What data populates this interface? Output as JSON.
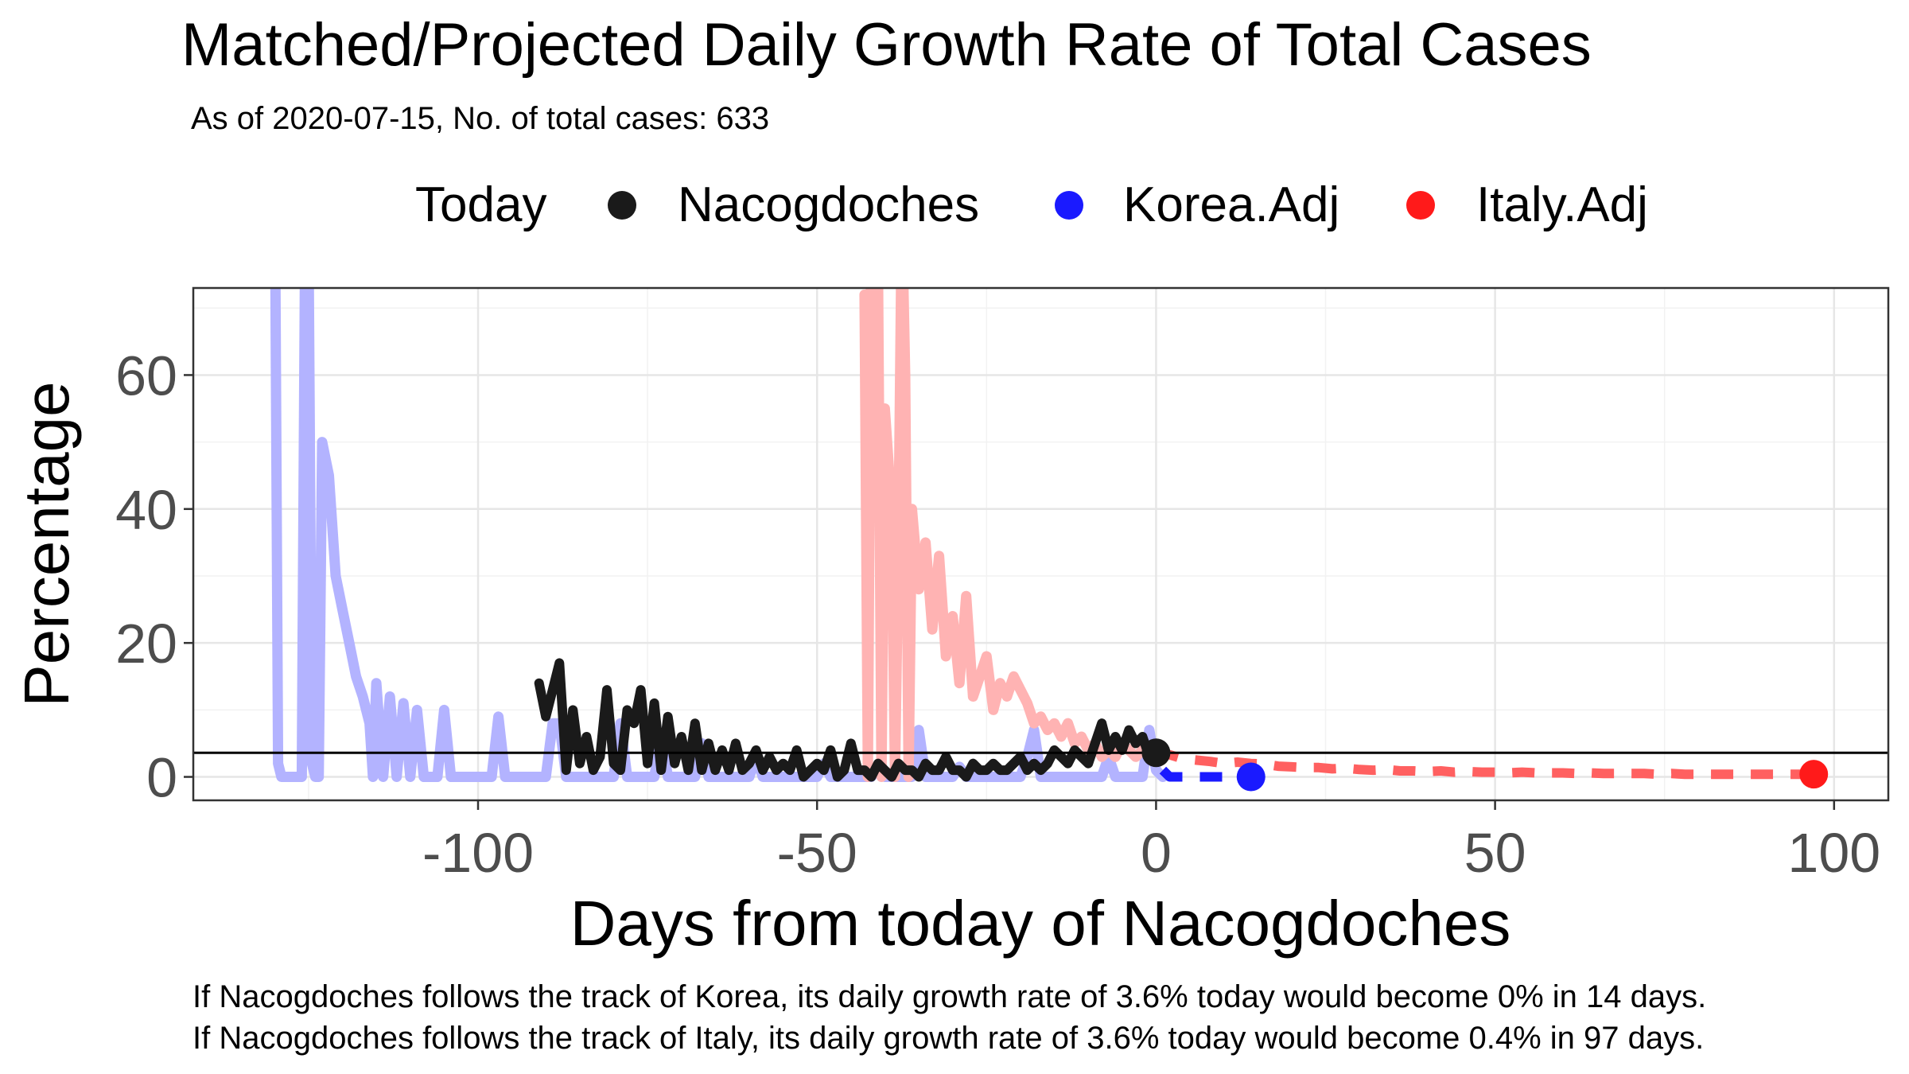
{
  "chart_data": {
    "type": "line",
    "title": "Matched/Projected Daily Growth Rate of Total Cases",
    "subtitle": "As of 2020-07-15, No. of total cases: 633",
    "xlabel": "Days from today of Nacogdoches",
    "ylabel": "Percentage",
    "xlim": [
      -142,
      108
    ],
    "ylim": [
      -3.5,
      73
    ],
    "x_ticks": [
      -100,
      -50,
      0,
      50,
      100
    ],
    "x_tick_labels": [
      "-100",
      "-50",
      "0",
      "50",
      "100"
    ],
    "y_ticks": [
      0,
      20,
      40,
      60
    ],
    "y_tick_labels": [
      "0",
      "20",
      "40",
      "60"
    ],
    "grid": true,
    "legend": {
      "title": "Today",
      "position": "top",
      "entries": [
        {
          "label": "Nacogdoches",
          "color": "#1a1a1a"
        },
        {
          "label": "Korea.Adj",
          "color": "#1a1aff"
        },
        {
          "label": "Italy.Adj",
          "color": "#ff1a1a"
        }
      ]
    },
    "reference_line": {
      "y": 3.6,
      "color": "#000000"
    },
    "series": [
      {
        "name": "Korea.Adj",
        "role": "matched",
        "color": "#b3b3ff",
        "points": [
          [
            -130,
            95
          ],
          [
            -129.5,
            2
          ],
          [
            -129,
            0
          ],
          [
            -128,
            0
          ],
          [
            -127,
            0
          ],
          [
            -126,
            0
          ],
          [
            -125.5,
            80
          ],
          [
            -125,
            80
          ],
          [
            -124.5,
            2
          ],
          [
            -124,
            0
          ],
          [
            -123.5,
            0
          ],
          [
            -123,
            50
          ],
          [
            -122,
            45
          ],
          [
            -121,
            30
          ],
          [
            -120,
            25
          ],
          [
            -119,
            20
          ],
          [
            -118,
            15
          ],
          [
            -117,
            12
          ],
          [
            -116,
            8
          ],
          [
            -115.5,
            0
          ],
          [
            -115,
            14
          ],
          [
            -114,
            0
          ],
          [
            -113,
            12
          ],
          [
            -112,
            0
          ],
          [
            -111,
            11
          ],
          [
            -110,
            0
          ],
          [
            -109,
            10
          ],
          [
            -108,
            0
          ],
          [
            -106,
            0
          ],
          [
            -105,
            10
          ],
          [
            -104,
            0
          ],
          [
            -98,
            0
          ],
          [
            -97,
            9
          ],
          [
            -96,
            0
          ],
          [
            -90,
            0
          ],
          [
            -89,
            8
          ],
          [
            -88,
            8
          ],
          [
            -87,
            0
          ],
          [
            -80,
            0
          ],
          [
            -79,
            8
          ],
          [
            -78,
            0
          ],
          [
            -74,
            0
          ],
          [
            -73,
            6
          ],
          [
            -72,
            0
          ],
          [
            -68,
            0
          ],
          [
            -67,
            5
          ],
          [
            -66,
            0
          ],
          [
            -60,
            0
          ],
          [
            -59,
            3
          ],
          [
            -58,
            0
          ],
          [
            -50,
            0
          ],
          [
            -49,
            2
          ],
          [
            -48,
            0
          ],
          [
            -42,
            0
          ],
          [
            -41,
            1.5
          ],
          [
            -40,
            0
          ],
          [
            -36,
            0
          ],
          [
            -35,
            7
          ],
          [
            -34,
            0
          ],
          [
            -30,
            0
          ],
          [
            -29,
            1.5
          ],
          [
            -28,
            0
          ],
          [
            -20,
            0
          ],
          [
            -19,
            3
          ],
          [
            -18,
            7
          ],
          [
            -17,
            0
          ],
          [
            -8,
            0
          ],
          [
            -7,
            3
          ],
          [
            -6,
            0
          ],
          [
            -2,
            0
          ],
          [
            -1,
            7
          ],
          [
            0,
            1
          ],
          [
            1,
            0
          ]
        ]
      },
      {
        "name": "Italy.Adj",
        "role": "matched",
        "color": "#ffb3b3",
        "points": [
          [
            -43,
            72
          ],
          [
            -42.5,
            0
          ],
          [
            -42,
            85
          ],
          [
            -41.5,
            50
          ],
          [
            -41,
            75
          ],
          [
            -40.5,
            0
          ],
          [
            -40,
            55
          ],
          [
            -39,
            40
          ],
          [
            -38.5,
            0
          ],
          [
            -38,
            35
          ],
          [
            -37.5,
            85
          ],
          [
            -37,
            60
          ],
          [
            -36.5,
            0
          ],
          [
            -36,
            40
          ],
          [
            -35,
            28
          ],
          [
            -34,
            35
          ],
          [
            -33,
            22
          ],
          [
            -32,
            33
          ],
          [
            -31,
            18
          ],
          [
            -30,
            24
          ],
          [
            -29,
            14
          ],
          [
            -28,
            27
          ],
          [
            -27,
            12
          ],
          [
            -26,
            15
          ],
          [
            -25,
            18
          ],
          [
            -24,
            10
          ],
          [
            -23,
            14
          ],
          [
            -22,
            12
          ],
          [
            -21,
            15
          ],
          [
            -20,
            13
          ],
          [
            -19,
            11
          ],
          [
            -18,
            8
          ],
          [
            -17,
            9
          ],
          [
            -16,
            7
          ],
          [
            -15,
            8
          ],
          [
            -14,
            6
          ],
          [
            -13,
            8
          ],
          [
            -12,
            5
          ],
          [
            -11,
            6
          ],
          [
            -10,
            4
          ],
          [
            -9,
            5
          ],
          [
            -8,
            3
          ],
          [
            -7,
            4
          ],
          [
            -6,
            3
          ],
          [
            -5,
            5
          ],
          [
            -4,
            4
          ],
          [
            -3,
            3
          ],
          [
            -2,
            4
          ],
          [
            -1,
            3
          ],
          [
            0,
            3.6
          ]
        ]
      },
      {
        "name": "Korea.Adj",
        "role": "projected",
        "color": "#1a1aff",
        "points": [
          [
            1,
            1
          ],
          [
            2,
            0
          ],
          [
            3,
            0
          ],
          [
            4,
            0
          ],
          [
            5,
            0
          ],
          [
            6,
            0
          ],
          [
            7,
            0
          ],
          [
            8,
            0
          ],
          [
            9,
            0
          ],
          [
            10,
            0
          ],
          [
            11,
            0
          ],
          [
            12,
            0
          ],
          [
            13,
            0
          ],
          [
            14,
            0
          ]
        ]
      },
      {
        "name": "Italy.Adj",
        "role": "projected",
        "color": "#ff6060",
        "points": [
          [
            0,
            3.6
          ],
          [
            2,
            3.3
          ],
          [
            4,
            2.7
          ],
          [
            6,
            2.5
          ],
          [
            8,
            2.3
          ],
          [
            10,
            2.0
          ],
          [
            12,
            2.2
          ],
          [
            14,
            2.0
          ],
          [
            16,
            1.9
          ],
          [
            18,
            1.6
          ],
          [
            20,
            1.5
          ],
          [
            22,
            1.4
          ],
          [
            24,
            1.4
          ],
          [
            26,
            1.2
          ],
          [
            28,
            1.3
          ],
          [
            30,
            1.1
          ],
          [
            32,
            1.0
          ],
          [
            34,
            1.1
          ],
          [
            36,
            0.9
          ],
          [
            38,
            0.9
          ],
          [
            40,
            0.8
          ],
          [
            42,
            0.9
          ],
          [
            44,
            0.7
          ],
          [
            46,
            0.8
          ],
          [
            48,
            0.7
          ],
          [
            50,
            0.7
          ],
          [
            52,
            0.6
          ],
          [
            54,
            0.7
          ],
          [
            56,
            0.6
          ],
          [
            58,
            0.6
          ],
          [
            60,
            0.6
          ],
          [
            62,
            0.5
          ],
          [
            64,
            0.6
          ],
          [
            66,
            0.5
          ],
          [
            68,
            0.5
          ],
          [
            70,
            0.5
          ],
          [
            72,
            0.5
          ],
          [
            74,
            0.4
          ],
          [
            76,
            0.5
          ],
          [
            78,
            0.4
          ],
          [
            80,
            0.4
          ],
          [
            82,
            0.4
          ],
          [
            84,
            0.4
          ],
          [
            86,
            0.4
          ],
          [
            88,
            0.4
          ],
          [
            90,
            0.4
          ],
          [
            92,
            0.4
          ],
          [
            94,
            0.4
          ],
          [
            96,
            0.4
          ],
          [
            97,
            0.4
          ]
        ]
      },
      {
        "name": "Nacogdoches",
        "role": "observed",
        "color": "#1a1a1a",
        "points": [
          [
            -91,
            14
          ],
          [
            -90,
            9
          ],
          [
            -89,
            13
          ],
          [
            -88,
            17
          ],
          [
            -87,
            1
          ],
          [
            -86,
            10
          ],
          [
            -85,
            2
          ],
          [
            -84,
            6
          ],
          [
            -83,
            1
          ],
          [
            -82,
            3
          ],
          [
            -81,
            13
          ],
          [
            -80,
            2
          ],
          [
            -79,
            1
          ],
          [
            -78,
            10
          ],
          [
            -77,
            8
          ],
          [
            -76,
            13
          ],
          [
            -75,
            2
          ],
          [
            -74,
            11
          ],
          [
            -73,
            1
          ],
          [
            -72,
            9
          ],
          [
            -71,
            2
          ],
          [
            -70,
            6
          ],
          [
            -69,
            1
          ],
          [
            -68,
            8
          ],
          [
            -67,
            1
          ],
          [
            -66,
            5
          ],
          [
            -65,
            1
          ],
          [
            -64,
            4
          ],
          [
            -63,
            1
          ],
          [
            -62,
            5
          ],
          [
            -61,
            1
          ],
          [
            -60,
            2
          ],
          [
            -59,
            4
          ],
          [
            -58,
            1
          ],
          [
            -57,
            3
          ],
          [
            -56,
            1
          ],
          [
            -55,
            2
          ],
          [
            -54,
            1
          ],
          [
            -53,
            4
          ],
          [
            -52,
            0
          ],
          [
            -51,
            1
          ],
          [
            -50,
            2
          ],
          [
            -49,
            1
          ],
          [
            -48,
            4
          ],
          [
            -47,
            0
          ],
          [
            -46,
            1
          ],
          [
            -45,
            5
          ],
          [
            -44,
            1
          ],
          [
            -43,
            1
          ],
          [
            -42,
            0
          ],
          [
            -41,
            2
          ],
          [
            -40,
            1
          ],
          [
            -39,
            0
          ],
          [
            -38,
            2
          ],
          [
            -37,
            1
          ],
          [
            -36,
            1
          ],
          [
            -35,
            0
          ],
          [
            -34,
            2
          ],
          [
            -33,
            1
          ],
          [
            -32,
            1
          ],
          [
            -31,
            3
          ],
          [
            -30,
            1
          ],
          [
            -29,
            1
          ],
          [
            -28,
            0
          ],
          [
            -27,
            2
          ],
          [
            -26,
            1
          ],
          [
            -25,
            1
          ],
          [
            -24,
            2
          ],
          [
            -23,
            1
          ],
          [
            -22,
            1
          ],
          [
            -21,
            2
          ],
          [
            -20,
            3
          ],
          [
            -19,
            1
          ],
          [
            -18,
            2
          ],
          [
            -17,
            1
          ],
          [
            -16,
            2
          ],
          [
            -15,
            4
          ],
          [
            -14,
            3
          ],
          [
            -13,
            2
          ],
          [
            -12,
            4
          ],
          [
            -11,
            3
          ],
          [
            -10,
            2
          ],
          [
            -9,
            5
          ],
          [
            -8,
            8
          ],
          [
            -7,
            4
          ],
          [
            -6,
            6
          ],
          [
            -5,
            4
          ],
          [
            -4,
            7
          ],
          [
            -3,
            5
          ],
          [
            -2,
            6
          ],
          [
            -1,
            3
          ],
          [
            0,
            3.6
          ]
        ]
      }
    ],
    "today_markers": [
      {
        "series": "Nacogdoches",
        "x": 0,
        "y": 3.6,
        "color": "#1a1a1a"
      },
      {
        "series": "Korea.Adj",
        "x": 14,
        "y": 0,
        "color": "#1a1aff"
      },
      {
        "series": "Italy.Adj",
        "x": 97,
        "y": 0.4,
        "color": "#ff1a1a"
      }
    ],
    "annotations": [
      "If Nacogdoches follows the track of Korea, its daily growth rate of 3.6% today would become 0% in 14 days.",
      "If Nacogdoches follows the track of Italy, its daily growth rate of 3.6% today would become 0.4% in 97 days."
    ]
  }
}
